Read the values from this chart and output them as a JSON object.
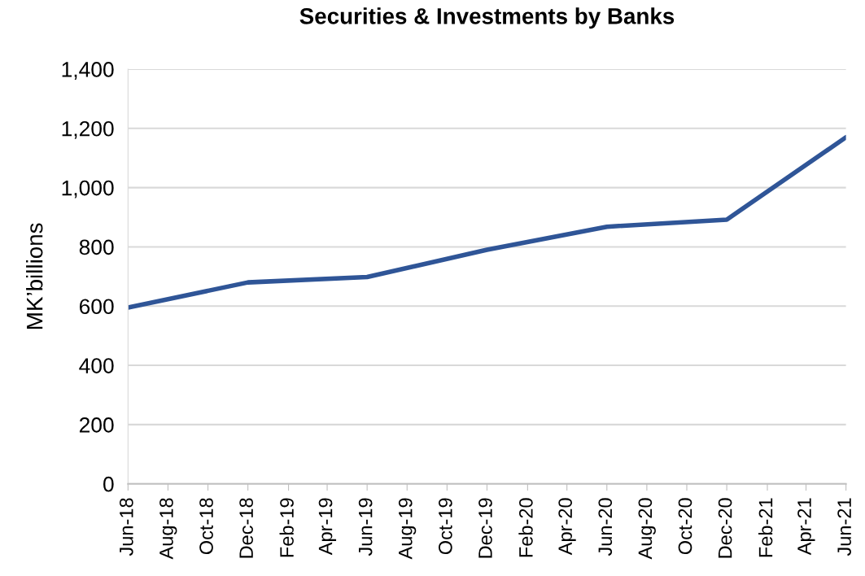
{
  "chart_data": {
    "type": "line",
    "title": "Securities & Investments by Banks",
    "ylabel": "MK’billions",
    "x": [
      "2018-06",
      "2018-12",
      "2019-06",
      "2019-12",
      "2020-06",
      "2020-12",
      "2021-06"
    ],
    "series": [
      {
        "color": "#2f5597",
        "values": [
          595,
          680,
          698,
          790,
          868,
          892,
          1170
        ]
      }
    ],
    "xlim": [
      "2018-06",
      "2021-06"
    ],
    "xticks": [
      {
        "value": "2018-06",
        "label": "Jun-18"
      },
      {
        "value": "2018-08",
        "label": "Aug-18"
      },
      {
        "value": "2018-10",
        "label": "Oct-18"
      },
      {
        "value": "2018-12",
        "label": "Dec-18"
      },
      {
        "value": "2019-02",
        "label": "Feb-19"
      },
      {
        "value": "2019-04",
        "label": "Apr-19"
      },
      {
        "value": "2019-06",
        "label": "Jun-19"
      },
      {
        "value": "2019-08",
        "label": "Aug-19"
      },
      {
        "value": "2019-10",
        "label": "Oct-19"
      },
      {
        "value": "2019-12",
        "label": "Dec-19"
      },
      {
        "value": "2020-02",
        "label": "Feb-20"
      },
      {
        "value": "2020-04",
        "label": "Apr-20"
      },
      {
        "value": "2020-06",
        "label": "Jun-20"
      },
      {
        "value": "2020-08",
        "label": "Aug-20"
      },
      {
        "value": "2020-10",
        "label": "Oct-20"
      },
      {
        "value": "2020-12",
        "label": "Dec-20"
      },
      {
        "value": "2021-02",
        "label": "Feb-21"
      },
      {
        "value": "2021-04",
        "label": "Apr-21"
      },
      {
        "value": "2021-06",
        "label": "Jun-21"
      }
    ],
    "ylim": [
      0,
      1400
    ],
    "yticks": [
      0,
      200,
      400,
      600,
      800,
      {
        "value": 1000,
        "label": "1,000"
      },
      {
        "value": 1200,
        "label": "1,200"
      },
      {
        "value": 1400,
        "label": "1,400"
      }
    ],
    "grid": "y",
    "legend": false,
    "marker": "none",
    "line_style": "solid"
  }
}
